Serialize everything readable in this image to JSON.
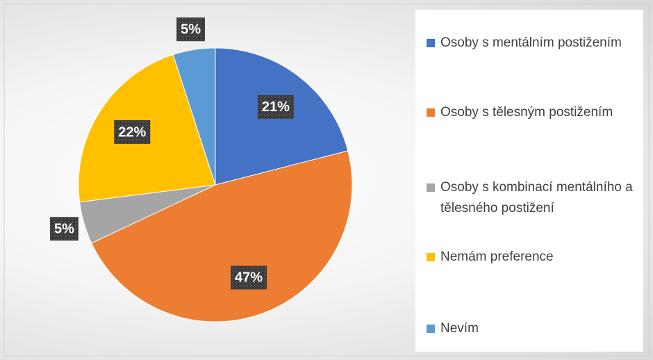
{
  "chart_data": {
    "type": "pie",
    "categories": [
      "Osoby s mentálním postižením",
      "Osoby s tělesným postižením",
      "Osoby s kombinací mentálního a tělesného postižení",
      "Nemám preference",
      "Nevím"
    ],
    "values": [
      21,
      47,
      5,
      22,
      5
    ],
    "value_labels": [
      "21%",
      "47%",
      "5%",
      "22%",
      "5%"
    ],
    "colors": [
      "#4472c4",
      "#ed7d31",
      "#a5a5a5",
      "#ffc000",
      "#5b9bd5"
    ],
    "legend": "right"
  }
}
